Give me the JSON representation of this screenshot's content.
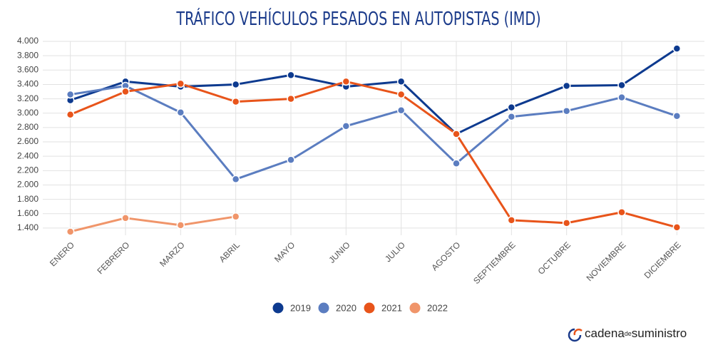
{
  "chart_data": {
    "type": "line",
    "title": "TRÁFICO VEHÍCULOS PESADOS EN AUTOPISTAS (IMD)",
    "categories": [
      "ENERO",
      "FEBRERO",
      "MARZO",
      "ABRIL",
      "MAYO",
      "JUNIO",
      "JULIO",
      "AGOSTO",
      "SEPTIEMBRE",
      "OCTUBRE",
      "NOVIEMBRE",
      "DICIEMBRE"
    ],
    "series": [
      {
        "name": "2019",
        "color": "#0d3a8f",
        "values": [
          3180,
          3440,
          3370,
          3400,
          3530,
          3370,
          3440,
          2710,
          3080,
          3380,
          3390,
          3900
        ]
      },
      {
        "name": "2020",
        "color": "#5b7dc0",
        "values": [
          3260,
          3380,
          3010,
          2080,
          2350,
          2820,
          3040,
          2300,
          2950,
          3030,
          3220,
          2960
        ]
      },
      {
        "name": "2021",
        "color": "#e8541a",
        "values": [
          2980,
          3300,
          3410,
          3160,
          3200,
          3440,
          3260,
          2710,
          1510,
          1470,
          1620,
          1410
        ]
      },
      {
        "name": "2022",
        "color": "#f0956a",
        "values": [
          1350,
          1540,
          1440,
          1560,
          null,
          null,
          null,
          null,
          null,
          null,
          null,
          null
        ]
      }
    ],
    "ylim": [
      1300,
      4000
    ],
    "yticks": [
      {
        "value": 1400,
        "label": "1.400"
      },
      {
        "value": 1600,
        "label": "1.600"
      },
      {
        "value": 1800,
        "label": "1.800"
      },
      {
        "value": 2000,
        "label": "2.000"
      },
      {
        "value": 2200,
        "label": "2.200"
      },
      {
        "value": 2400,
        "label": "2.400"
      },
      {
        "value": 2600,
        "label": "2.600"
      },
      {
        "value": 2800,
        "label": "2.800"
      },
      {
        "value": 3000,
        "label": "3.000"
      },
      {
        "value": 3200,
        "label": "3.200"
      },
      {
        "value": 3400,
        "label": "3.400"
      },
      {
        "value": 3600,
        "label": "3.600"
      },
      {
        "value": 3800,
        "label": "3.800"
      },
      {
        "value": 4000,
        "label": "4.000"
      }
    ],
    "grid": true,
    "legend": "bottom"
  },
  "logo": {
    "brand": "cadena",
    "join": "de",
    "rest": "suministro"
  }
}
